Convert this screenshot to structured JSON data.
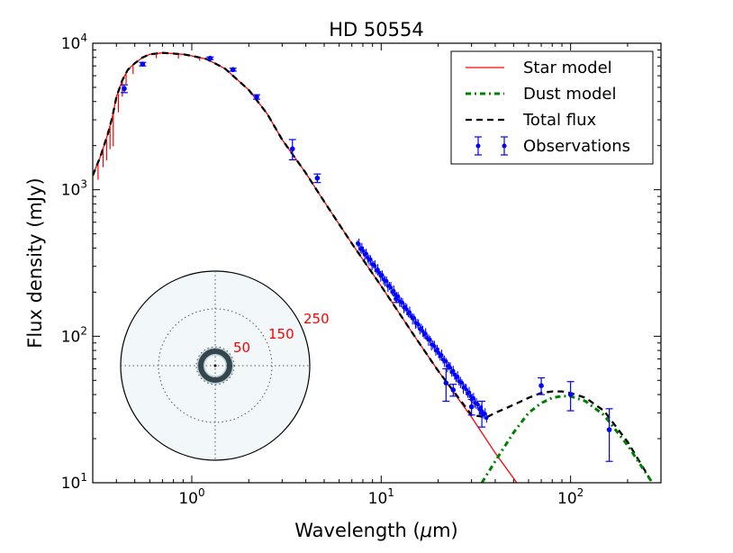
{
  "chart_data": {
    "type": "scatter",
    "title": "HD 50554",
    "xlabel_main": "Wavelength (",
    "xlabel_mu": "μ",
    "xlabel_unit": "m)",
    "ylabel": "Flux density (mJy)",
    "xscale": "log",
    "yscale": "log",
    "xlim": [
      0.3,
      300
    ],
    "ylim": [
      10,
      10000
    ],
    "x_ticks": [
      {
        "value": 1,
        "base": "10",
        "exp": "0"
      },
      {
        "value": 10,
        "base": "10",
        "exp": "1"
      },
      {
        "value": 100,
        "base": "10",
        "exp": "2"
      }
    ],
    "y_ticks": [
      {
        "value": 10,
        "base": "10",
        "exp": "1"
      },
      {
        "value": 100,
        "base": "10",
        "exp": "2"
      },
      {
        "value": 1000,
        "base": "10",
        "exp": "3"
      },
      {
        "value": 10000,
        "base": "10",
        "exp": "4"
      }
    ],
    "legend": {
      "position": "top-right",
      "entries": [
        "Star model",
        "Dust model",
        "Total flux",
        "Observations"
      ]
    },
    "colors": {
      "star": "#ff0000",
      "dust": "#008000",
      "total": "#000000",
      "obs": "#0000ff",
      "inset_fill": "#f2f8fa",
      "inset_label": "#ff0000"
    },
    "series": [
      {
        "name": "Star model",
        "style": "solid",
        "x": [
          0.3,
          0.33,
          0.36,
          0.38,
          0.4,
          0.43,
          0.46,
          0.5,
          0.55,
          0.6,
          0.7,
          0.8,
          0.9,
          1.0,
          1.2,
          1.5,
          2.0,
          2.5,
          3.0,
          4.0,
          5.0,
          7.0,
          10,
          15,
          20,
          30,
          40,
          52
        ],
        "y": [
          1250,
          1700,
          2400,
          3100,
          4300,
          5600,
          6600,
          7300,
          8000,
          8400,
          8600,
          8500,
          8400,
          8200,
          7800,
          6700,
          4800,
          3300,
          2200,
          1300,
          830,
          430,
          220,
          100,
          58,
          28,
          16,
          10
        ]
      },
      {
        "name": "Dust model",
        "style": "dashdot",
        "x": [
          34,
          40,
          50,
          60,
          70,
          80,
          90,
          100,
          120,
          150,
          200,
          270
        ],
        "y": [
          10,
          14,
          22,
          30,
          35,
          38,
          39,
          39,
          36,
          29,
          18,
          10
        ]
      },
      {
        "name": "Total flux",
        "style": "dashed",
        "x": [
          0.3,
          0.33,
          0.36,
          0.38,
          0.4,
          0.43,
          0.46,
          0.5,
          0.55,
          0.6,
          0.7,
          0.8,
          0.9,
          1.0,
          1.2,
          1.5,
          2.0,
          2.5,
          3.0,
          4.0,
          5.0,
          7.0,
          10,
          15,
          20,
          30,
          36,
          40,
          50,
          60,
          70,
          80,
          90,
          100,
          120,
          150,
          200,
          270
        ],
        "y": [
          1250,
          1700,
          2400,
          3100,
          4300,
          5600,
          6600,
          7300,
          8000,
          8400,
          8600,
          8500,
          8400,
          8200,
          7800,
          6700,
          4800,
          3300,
          2200,
          1300,
          830,
          430,
          220,
          100,
          58,
          29,
          28,
          30,
          34,
          38,
          41,
          42,
          42,
          41,
          38,
          31,
          19,
          10
        ]
      }
    ],
    "observations": [
      {
        "x": 0.44,
        "y": 4900,
        "err": 300
      },
      {
        "x": 0.55,
        "y": 7200,
        "err": 200
      },
      {
        "x": 1.25,
        "y": 7900,
        "err": 150
      },
      {
        "x": 1.65,
        "y": 6600,
        "err": 150
      },
      {
        "x": 2.2,
        "y": 4300,
        "err": 150
      },
      {
        "x": 3.4,
        "y": 1900,
        "err": 300
      },
      {
        "x": 4.6,
        "y": 1200,
        "err": 80
      },
      {
        "x": 12,
        "y": 180,
        "err": 10
      },
      {
        "x": 22,
        "y": 48,
        "err": 12
      },
      {
        "x": 24,
        "y": 43,
        "err": 4
      },
      {
        "x": 30,
        "y": 33,
        "err": 4
      },
      {
        "x": 34,
        "y": 30,
        "err": 6
      },
      {
        "x": 70,
        "y": 46,
        "err": 6
      },
      {
        "x": 100,
        "y": 40,
        "err": 9
      },
      {
        "x": 160,
        "y": 23,
        "err": 9
      }
    ],
    "spectrum": {
      "x_range": [
        7.5,
        36
      ],
      "y_at_start": 430,
      "y_at_end": 28,
      "samples": 90
    },
    "inset": {
      "type": "polar",
      "ring_labels": [
        "50",
        "150",
        "250"
      ]
    }
  }
}
